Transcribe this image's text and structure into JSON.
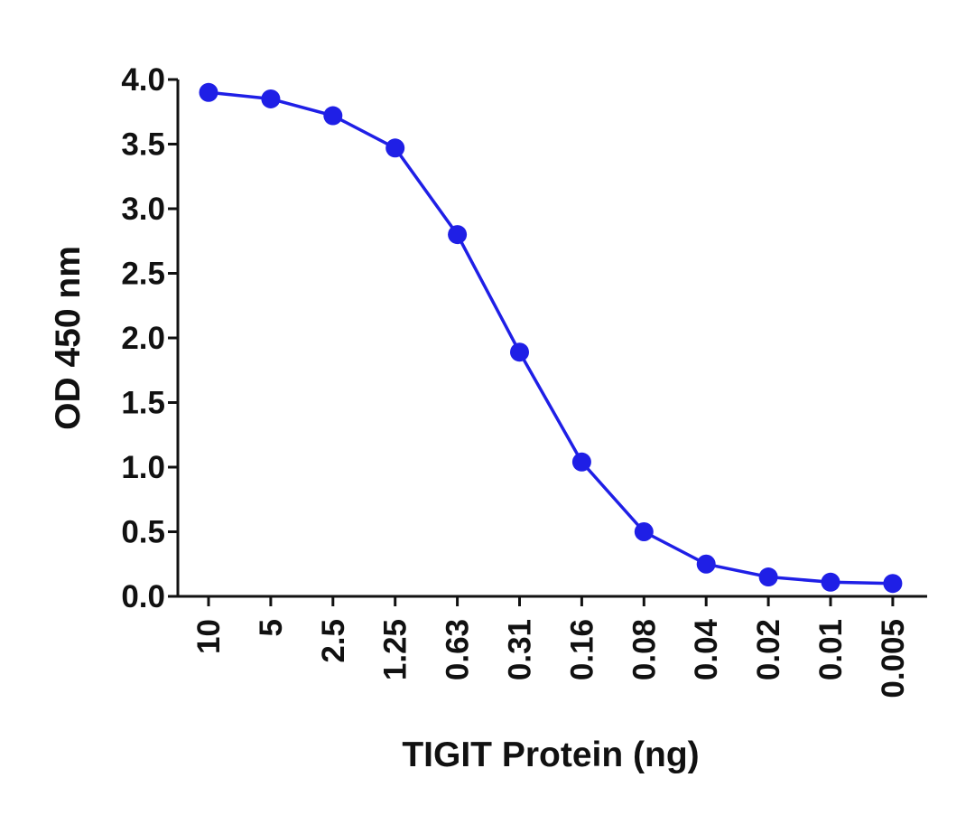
{
  "chart_data": {
    "type": "line",
    "title": "",
    "xlabel": "TIGIT Protein (ng)",
    "ylabel": "OD 450 nm",
    "categories": [
      "10",
      "5",
      "2.5",
      "1.25",
      "0.63",
      "0.31",
      "0.16",
      "0.08",
      "0.04",
      "0.02",
      "0.01",
      "0.005"
    ],
    "series": [
      {
        "values": [
          3.9,
          3.85,
          3.72,
          3.47,
          2.8,
          1.89,
          1.04,
          0.5,
          0.25,
          0.15,
          0.11,
          0.1
        ],
        "color": "#1f1fe6",
        "marker": "circle"
      }
    ],
    "ylim": [
      0,
      4.0
    ],
    "yticks": [
      "0.0",
      "0.5",
      "1.0",
      "1.5",
      "2.0",
      "2.5",
      "3.0",
      "3.5",
      "4.0"
    ],
    "grid": false,
    "legend": "none"
  }
}
